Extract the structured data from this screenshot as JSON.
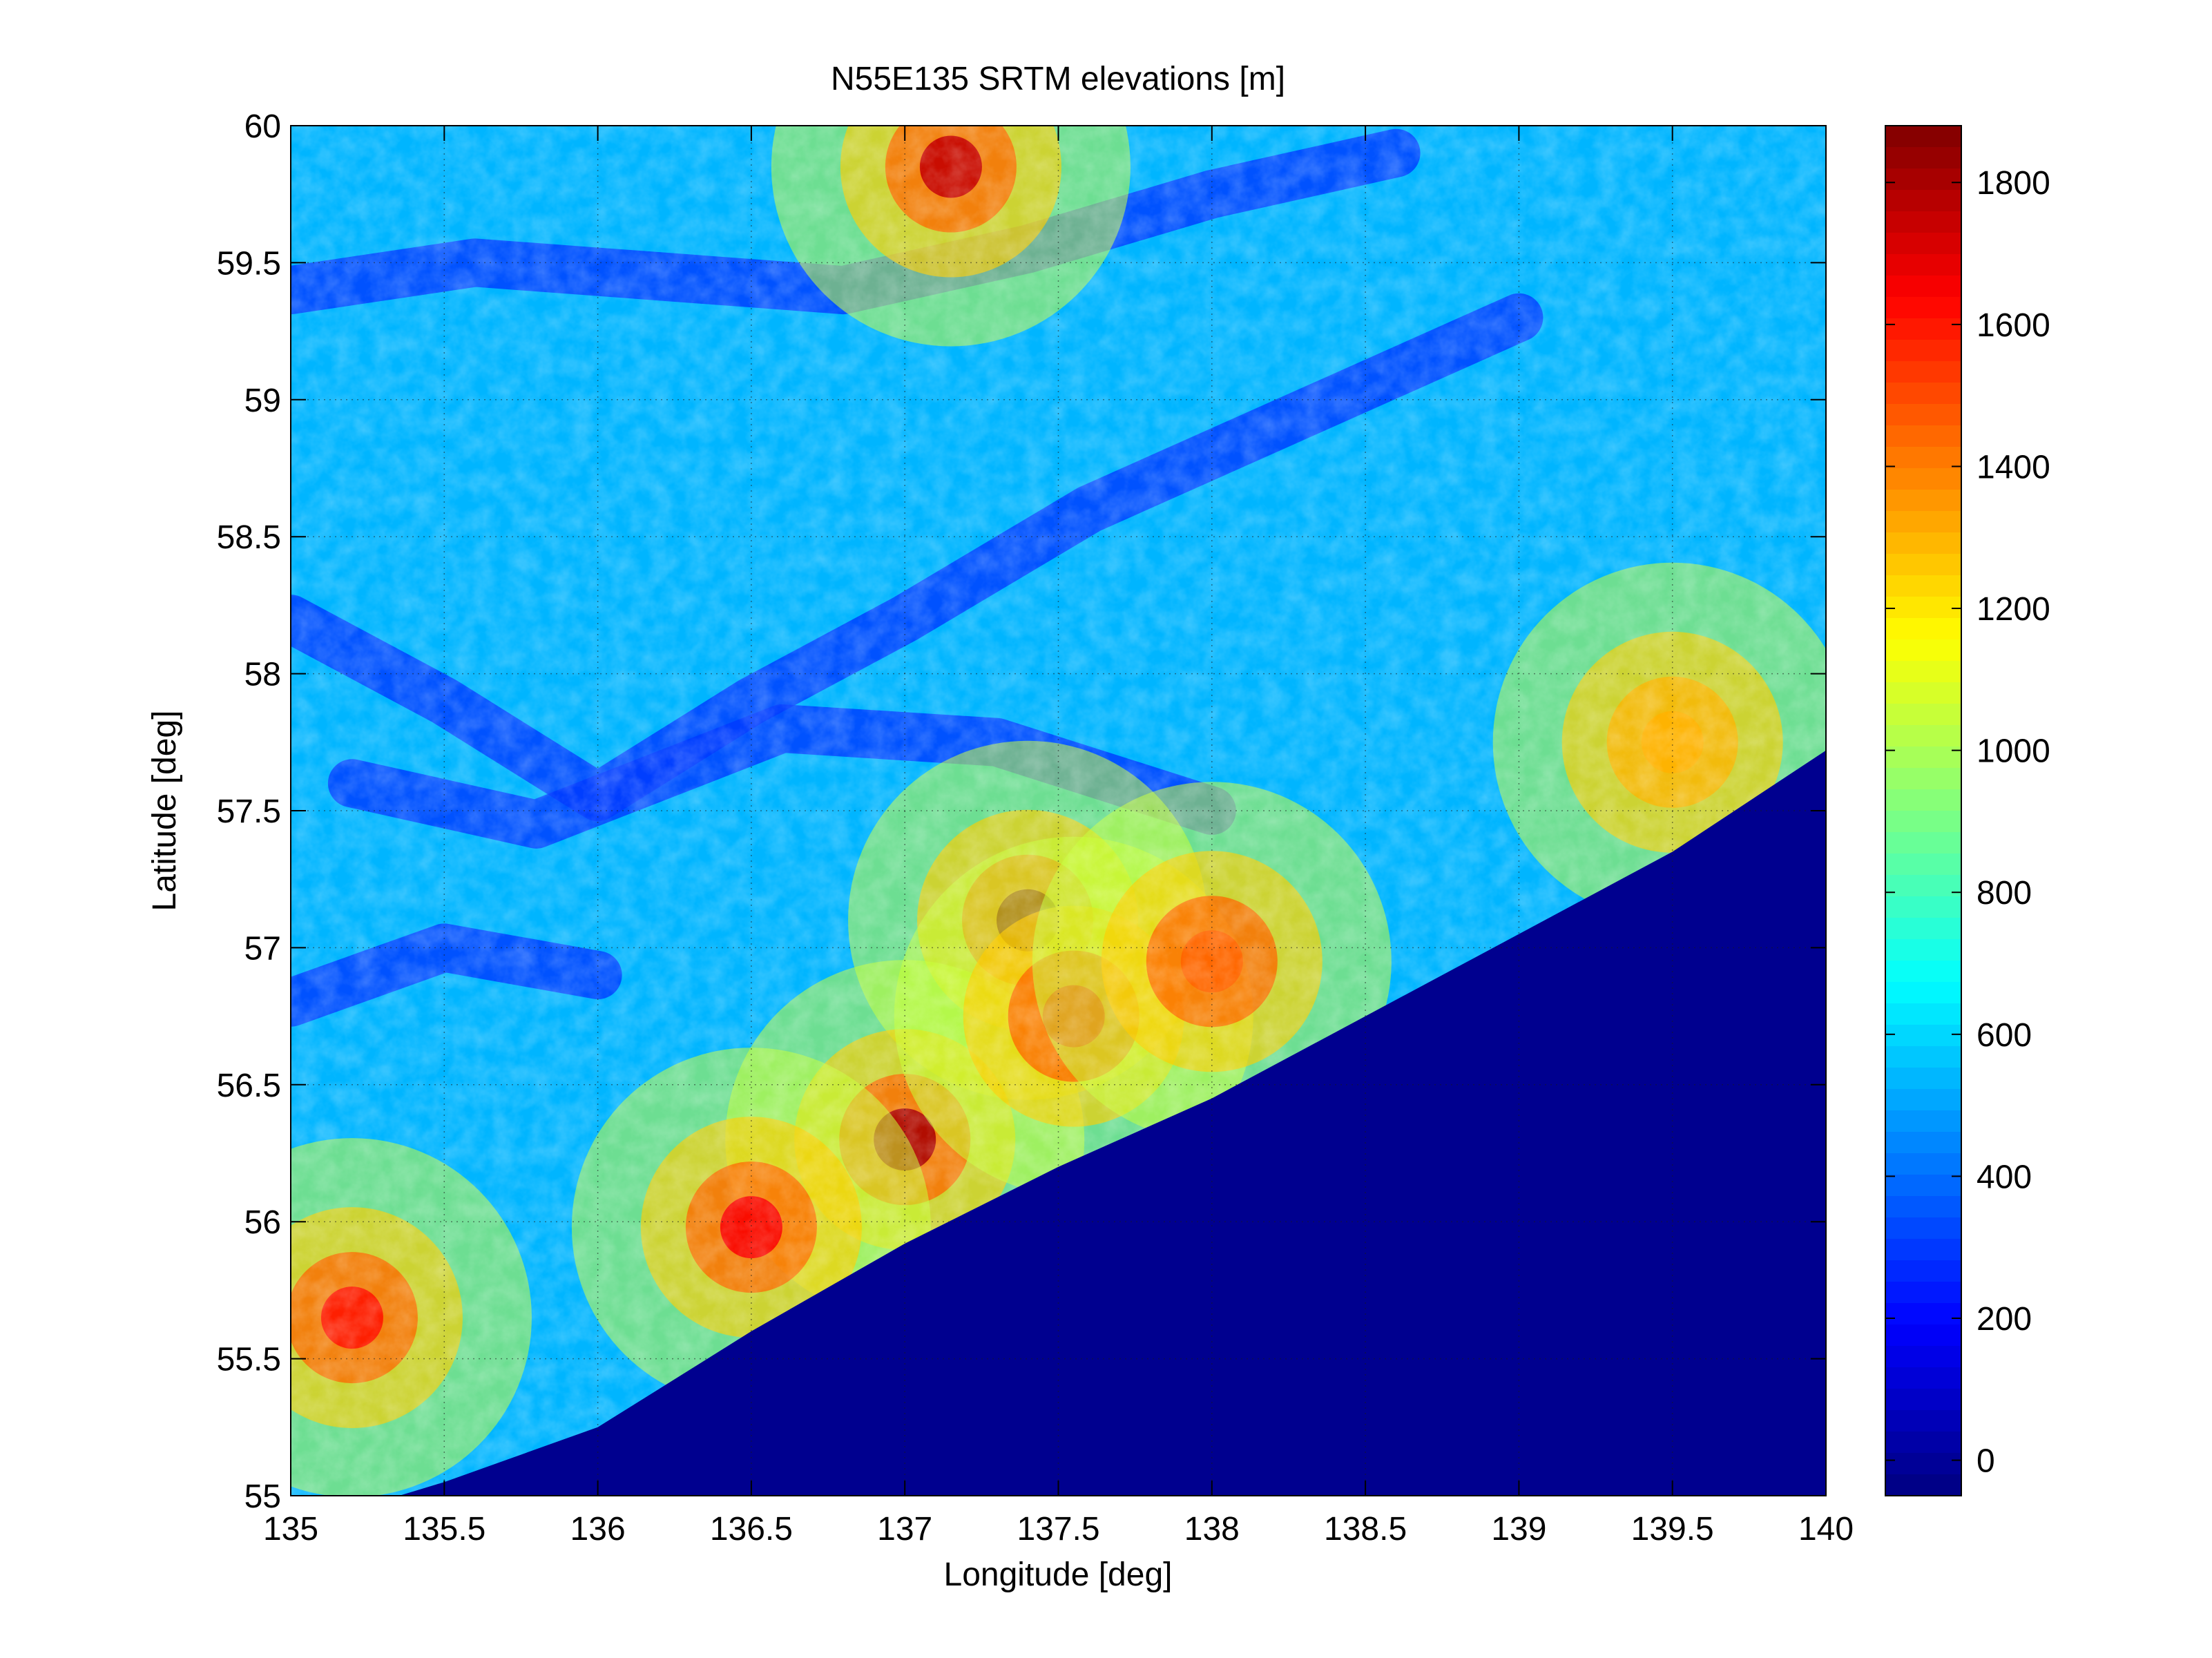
{
  "chart_data": {
    "type": "heatmap",
    "title": "N55E135 SRTM elevations [m]",
    "xlabel": "Longitude [deg]",
    "ylabel": "Latitude [deg]",
    "xlim": [
      135,
      140
    ],
    "ylim": [
      55,
      60
    ],
    "x_ticks": [
      135,
      135.5,
      136,
      136.5,
      137,
      137.5,
      138,
      138.5,
      139,
      139.5,
      140
    ],
    "x_tick_labels": [
      "135",
      "135.5",
      "136",
      "136.5",
      "137",
      "137.5",
      "138",
      "138.5",
      "139",
      "139.5",
      "140"
    ],
    "y_ticks": [
      55,
      55.5,
      56,
      56.5,
      57,
      57.5,
      58,
      58.5,
      59,
      59.5,
      60
    ],
    "y_tick_labels": [
      "55",
      "55.5",
      "56",
      "56.5",
      "57",
      "57.5",
      "58",
      "58.5",
      "59",
      "59.5",
      "60"
    ],
    "grid": true,
    "colormap": "jet",
    "colorbar": {
      "clim": [
        -50,
        1880
      ],
      "ticks": [
        0,
        200,
        400,
        600,
        800,
        1000,
        1200,
        1400,
        1600,
        1800
      ],
      "tick_labels": [
        "0",
        "200",
        "400",
        "600",
        "800",
        "1000",
        "1200",
        "1400",
        "1600",
        "1800"
      ],
      "placement": "right"
    },
    "coast_line": [
      [
        135.0,
        54.88
      ],
      [
        135.5,
        55.05
      ],
      [
        136.0,
        55.25
      ],
      [
        136.5,
        55.6
      ],
      [
        137.0,
        55.92
      ],
      [
        137.5,
        56.2
      ],
      [
        138.0,
        56.45
      ],
      [
        138.5,
        56.75
      ],
      [
        139.0,
        57.05
      ],
      [
        139.5,
        57.35
      ],
      [
        140.0,
        57.72
      ]
    ],
    "peaks_m": [
      {
        "lon": 137.4,
        "lat": 57.1,
        "elevation": 1850
      },
      {
        "lon": 137.0,
        "lat": 56.3,
        "elevation": 1800
      },
      {
        "lon": 137.15,
        "lat": 59.85,
        "elevation": 1750
      },
      {
        "lon": 136.5,
        "lat": 55.98,
        "elevation": 1650
      },
      {
        "lon": 135.2,
        "lat": 55.65,
        "elevation": 1600
      },
      {
        "lon": 137.55,
        "lat": 56.75,
        "elevation": 1550
      },
      {
        "lon": 138.0,
        "lat": 56.95,
        "elevation": 1450
      },
      {
        "lon": 139.5,
        "lat": 57.75,
        "elevation": 1300
      }
    ]
  }
}
